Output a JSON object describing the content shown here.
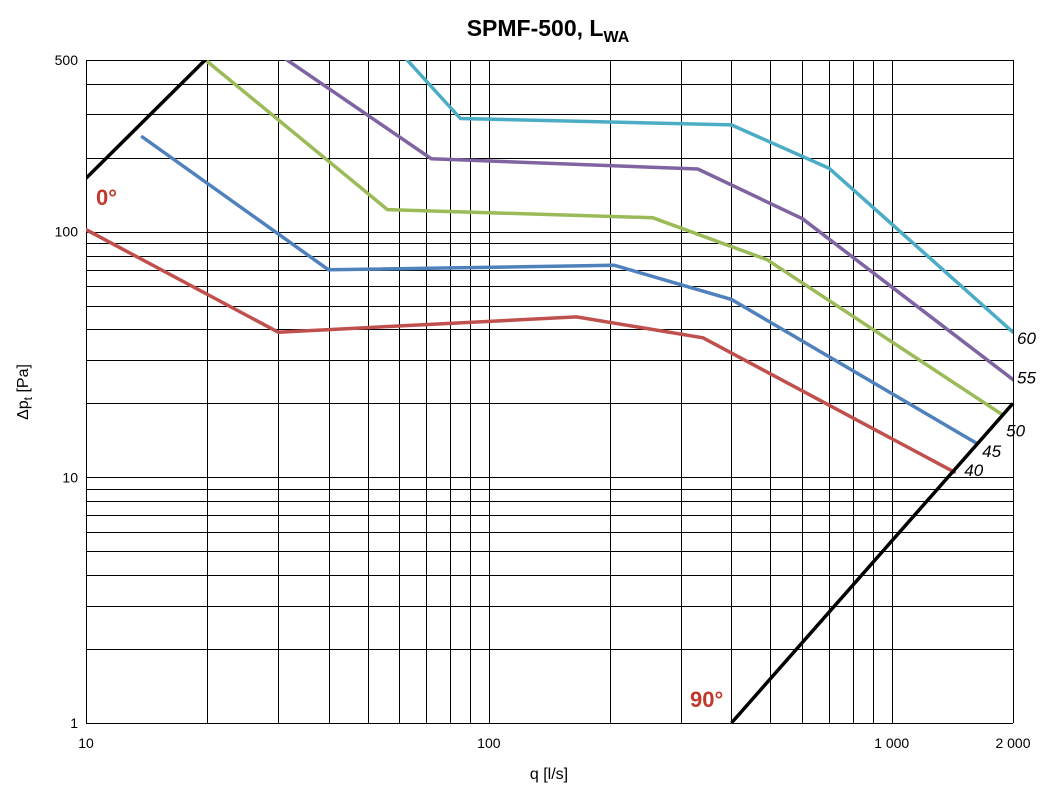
{
  "chart_data": {
    "type": "line",
    "title": "SPMF-500, L",
    "title_subscript": "WA",
    "xlabel": "q [l/s]",
    "ylabel": "Δp",
    "ylabel_subscript": "t",
    "ylabel_unit": " [Pa]",
    "x_scale": "log",
    "y_scale": "log",
    "xlim": [
      10,
      2000
    ],
    "ylim": [
      1,
      500
    ],
    "grid": true,
    "x_ticks": [
      {
        "value": 10,
        "label": "10"
      },
      {
        "value": 100,
        "label": "100"
      },
      {
        "value": 1000,
        "label": "1 000"
      },
      {
        "value": 2000,
        "label": "2 000"
      }
    ],
    "y_ticks": [
      {
        "value": 1,
        "label": "1"
      },
      {
        "value": 10,
        "label": "10"
      },
      {
        "value": 100,
        "label": "100"
      },
      {
        "value": 500,
        "label": "500"
      }
    ],
    "x_grid": [
      10,
      20,
      30,
      40,
      50,
      60,
      70,
      80,
      90,
      100,
      200,
      300,
      400,
      500,
      600,
      700,
      800,
      900,
      1000,
      2000
    ],
    "y_grid": [
      1,
      2,
      3,
      4,
      5,
      6,
      7,
      8,
      9,
      10,
      20,
      30,
      40,
      50,
      60,
      70,
      80,
      90,
      100,
      200,
      300,
      400,
      500
    ],
    "series": [
      {
        "name": "40",
        "color": "#c0504d",
        "points": [
          [
            10,
            102
          ],
          [
            30,
            39
          ],
          [
            165,
            45
          ],
          [
            340,
            37
          ],
          [
            1430,
            10.5
          ]
        ]
      },
      {
        "name": "45",
        "color": "#4f81bd",
        "points": [
          [
            13.8,
            243
          ],
          [
            40,
            70
          ],
          [
            205,
            73
          ],
          [
            400,
            53
          ],
          [
            1620,
            13.8
          ]
        ]
      },
      {
        "name": "50",
        "color": "#9bbb59",
        "points": [
          [
            20,
            493
          ],
          [
            56,
            123
          ],
          [
            255,
            114
          ],
          [
            490,
            77
          ],
          [
            1880,
            18
          ]
        ]
      },
      {
        "name": "55",
        "color": "#8064a2",
        "points": [
          [
            31,
            510
          ],
          [
            72,
            198
          ],
          [
            330,
            180
          ],
          [
            600,
            113
          ],
          [
            2000,
            25
          ]
        ]
      },
      {
        "name": "60",
        "color": "#4bacc6",
        "points": [
          [
            62,
            510
          ],
          [
            85,
            289
          ],
          [
            400,
            272
          ],
          [
            700,
            181
          ],
          [
            2000,
            39
          ]
        ]
      }
    ],
    "limit_lines": [
      {
        "label": "0°",
        "color": "#c0392b",
        "points": [
          [
            10,
            165
          ],
          [
            20,
            510
          ]
        ]
      },
      {
        "label": "90°",
        "color": "#c0392b",
        "points": [
          [
            400,
            1
          ],
          [
            2000,
            20
          ]
        ]
      }
    ]
  }
}
